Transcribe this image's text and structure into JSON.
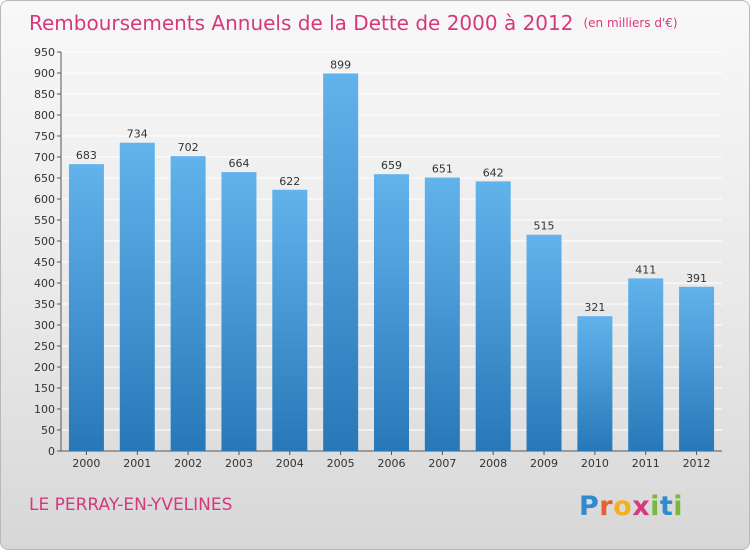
{
  "chart_title": "Remboursements Annuels de la Dette de 2000 à 2012",
  "chart_unit": "(en milliers d'€)",
  "commune": "LE PERRAY-EN-YVELINES",
  "brand": {
    "letters": [
      "P",
      "r",
      "o",
      "x",
      "i",
      "t",
      "i"
    ]
  },
  "colors": {
    "title": "#d6387c",
    "bar_top": "#62b3ec",
    "bar_bottom": "#2878b8",
    "grid": "#ffffff",
    "brand_letters": [
      "#2f8ad0",
      "#e2622a",
      "#f2b21f",
      "#d6387c",
      "#7ab83a",
      "#2f8ad0",
      "#7ab83a"
    ]
  },
  "chart_data": {
    "type": "bar",
    "categories": [
      "2000",
      "2001",
      "2002",
      "2003",
      "2004",
      "2005",
      "2006",
      "2007",
      "2008",
      "2009",
      "2010",
      "2011",
      "2012"
    ],
    "values": [
      683,
      734,
      702,
      664,
      622,
      899,
      659,
      651,
      642,
      515,
      321,
      411,
      391
    ],
    "yticks": [
      "0",
      "50",
      "100",
      "150",
      "200",
      "250",
      "300",
      "350",
      "400",
      "450",
      "500",
      "550",
      "600",
      "650",
      "700",
      "750",
      "800",
      "850",
      "900",
      "950"
    ],
    "ylim": [
      0,
      950
    ],
    "grid": true,
    "data_labels": true
  }
}
